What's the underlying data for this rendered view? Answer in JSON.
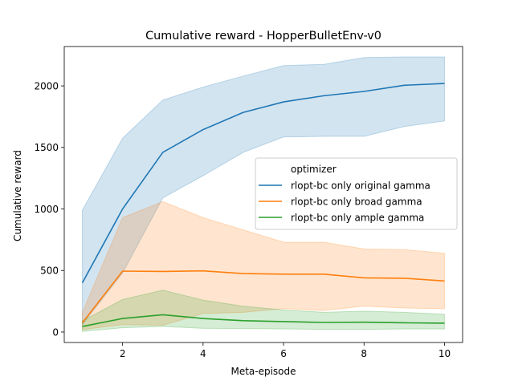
{
  "chart_data": {
    "type": "line",
    "title": "Cumulative reward - HopperBulletEnv-v0",
    "xlabel": "Meta-episode",
    "ylabel": "Cumulative reward",
    "xlim": [
      0.55,
      10.45
    ],
    "ylim": [
      -85,
      2320
    ],
    "x_ticks": [
      2,
      4,
      6,
      8,
      10
    ],
    "y_ticks": [
      0,
      500,
      1000,
      1500,
      2000
    ],
    "grid": false,
    "legend": {
      "title": "optimizer",
      "position": "center-right"
    },
    "x": [
      1,
      2,
      3,
      4,
      5,
      6,
      7,
      8,
      9,
      10
    ],
    "series": [
      {
        "name": "rlopt-bc only original gamma",
        "color": "#1f77b4",
        "values": [
          400,
          1000,
          1460,
          1645,
          1785,
          1870,
          1920,
          1955,
          2005,
          2020
        ],
        "lower": [
          60,
          480,
          1090,
          1270,
          1460,
          1585,
          1590,
          1590,
          1670,
          1715
        ],
        "upper": [
          990,
          1575,
          1885,
          1990,
          2080,
          2165,
          2175,
          2230,
          2235,
          2235
        ]
      },
      {
        "name": "rlopt-bc only broad gamma",
        "color": "#ff7f0e",
        "values": [
          75,
          495,
          492,
          497,
          475,
          470,
          470,
          440,
          437,
          415
        ],
        "lower": [
          20,
          60,
          55,
          150,
          160,
          190,
          175,
          210,
          195,
          190
        ],
        "upper": [
          160,
          930,
          1060,
          930,
          830,
          730,
          730,
          675,
          670,
          640
        ]
      },
      {
        "name": "rlopt-bc only ample gamma",
        "color": "#2ca02c",
        "values": [
          45,
          110,
          140,
          110,
          92,
          85,
          78,
          80,
          75,
          72
        ],
        "lower": [
          5,
          35,
          45,
          30,
          28,
          25,
          22,
          22,
          25,
          25
        ],
        "upper": [
          90,
          265,
          340,
          260,
          210,
          180,
          160,
          170,
          160,
          145
        ]
      }
    ]
  }
}
